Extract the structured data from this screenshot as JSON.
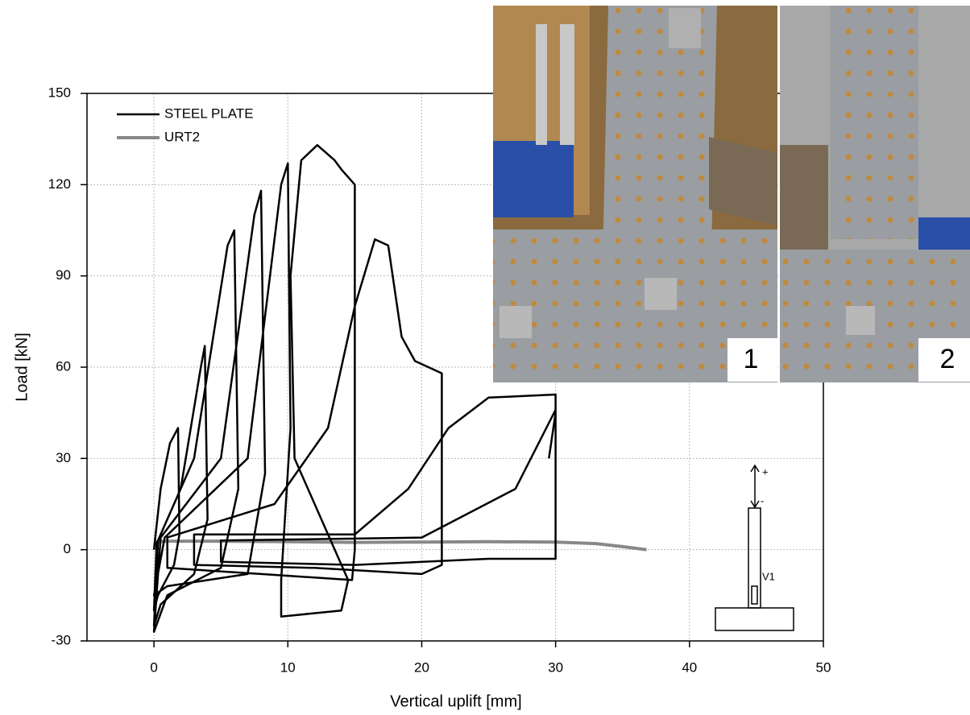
{
  "chart_data": {
    "type": "line",
    "xlabel": "Vertical uplift [mm]",
    "ylabel": "Load [kN]",
    "xlim": [
      -5,
      50
    ],
    "xticks": [
      0,
      10,
      20,
      30,
      40,
      50
    ],
    "ylim": [
      -30,
      150
    ],
    "yticks": [
      -30,
      0,
      30,
      60,
      90,
      120,
      150
    ],
    "grid": true,
    "legend": "upper left",
    "series": [
      {
        "name": "STEEL PLATE",
        "color": "#000000",
        "x": [
          0,
          0.5,
          1.2,
          1.8,
          1.9,
          1.5,
          0.3,
          0,
          0.2,
          2,
          3.5,
          3.8,
          4,
          3,
          0.5,
          0,
          0.3,
          3,
          5.5,
          6,
          6.3,
          5,
          1,
          0,
          0.5,
          5,
          7.5,
          8,
          8.3,
          7,
          1,
          0,
          0.8,
          7,
          9.5,
          10,
          10.2,
          9.5,
          9.5,
          14,
          14.5,
          10.5,
          10.2,
          11,
          12.2,
          13.5,
          14,
          15,
          15,
          14.8,
          8,
          1,
          1,
          9,
          13,
          15,
          16.5,
          17.5,
          18,
          18.5,
          19.5,
          21.5,
          21.5,
          20,
          12,
          3,
          3,
          15,
          19,
          22,
          25,
          30,
          30,
          25,
          15,
          5,
          5,
          20,
          27,
          30,
          30,
          29.5
        ],
        "values": [
          0,
          20,
          35,
          40,
          5,
          -5,
          -15,
          -20,
          2,
          20,
          60,
          67,
          10,
          -8,
          -18,
          -25,
          3,
          30,
          100,
          105,
          20,
          -6,
          -15,
          -27,
          4,
          30,
          110,
          118,
          25,
          -8,
          -12,
          -15,
          4,
          30,
          120,
          127,
          40,
          -10,
          -22,
          -20,
          -10,
          30,
          90,
          128,
          133,
          128,
          125,
          120,
          0,
          -10,
          -8,
          -6,
          4,
          15,
          40,
          80,
          102,
          100,
          85,
          70,
          62,
          58,
          -5,
          -8,
          -6,
          -5,
          5,
          5,
          20,
          40,
          50,
          51,
          -3,
          -3,
          -5,
          -4,
          3,
          4,
          20,
          46,
          45,
          30
        ]
      },
      {
        "name": "URT2",
        "color": "#888888",
        "x": [
          0,
          1,
          5,
          10,
          15,
          20,
          25,
          30,
          33,
          35,
          36.8
        ],
        "values": [
          2.5,
          2.8,
          2.8,
          2.6,
          2.4,
          2.5,
          2.6,
          2.5,
          2,
          1,
          0
        ]
      }
    ],
    "annotations": [
      "1",
      "2",
      "+",
      "-",
      "V1"
    ]
  }
}
